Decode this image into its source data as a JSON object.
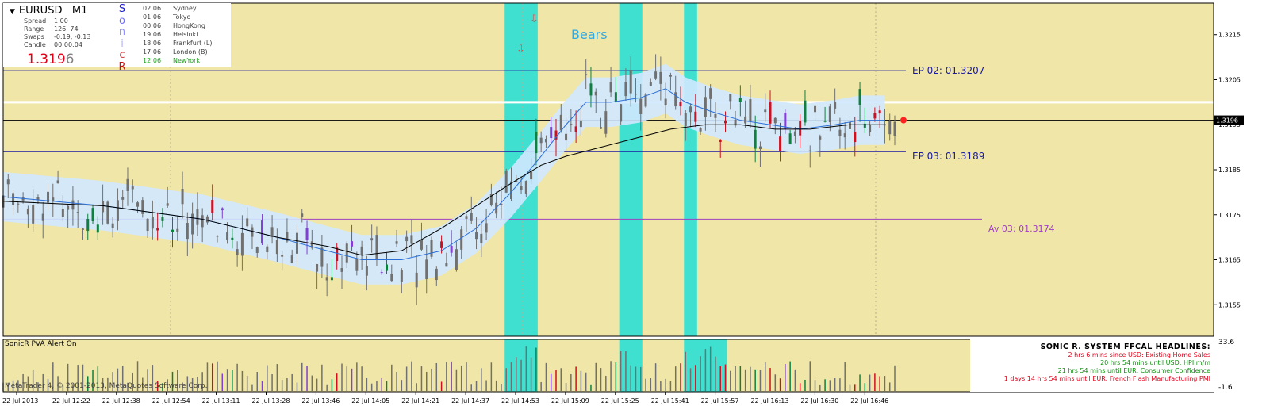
{
  "header": {
    "symbol": "EURUSD",
    "timeframe": "M1",
    "rows": [
      {
        "label": "Spread",
        "value": "1.00"
      },
      {
        "label": "Range",
        "value": "126, 74"
      },
      {
        "label": "Swaps",
        "value": "-0.19, -0.13"
      },
      {
        "label": "Candle",
        "value": "00:00:04"
      }
    ],
    "price_main": "1.319",
    "price_tail": "6",
    "sonic_letters": [
      "S",
      "o",
      "n",
      "i",
      "c",
      "R"
    ],
    "sonic_colors": [
      "#2020d0",
      "#7070ff",
      "#9090ff",
      "#b0b0ff",
      "#d04040",
      "#d01010"
    ],
    "sessions": [
      {
        "time": "02:06",
        "city": "Sydney",
        "color": "#404040"
      },
      {
        "time": "01:06",
        "city": "Tokyo",
        "color": "#404040"
      },
      {
        "time": "00:06",
        "city": "HongKong",
        "color": "#404040"
      },
      {
        "time": "19:06",
        "city": "Helsinki",
        "color": "#404040"
      },
      {
        "time": "18:06",
        "city": "Frankfurt  (L)",
        "color": "#404040"
      },
      {
        "time": "17:06",
        "city": "London  (B)",
        "color": "#404040"
      },
      {
        "time": "12:06",
        "city": "NewYork",
        "color": "#20a020"
      }
    ]
  },
  "chart_data": {
    "type": "candlestick",
    "symbol": "EURUSD",
    "timeframe": "M1",
    "ylim": [
      1.3148,
      1.3222
    ],
    "y_ticks": [
      "1.3215",
      "1.3205",
      "1.3195",
      "1.3185",
      "1.3175",
      "1.3165",
      "1.3155"
    ],
    "current_price": "1.3196",
    "x_tick_labels": [
      "22 Jul 2013",
      "22 Jul 12:22",
      "22 Jul 12:38",
      "22 Jul 12:54",
      "22 Jul 13:11",
      "22 Jul 13:28",
      "22 Jul 13:46",
      "22 Jul 14:05",
      "22 Jul 14:21",
      "22 Jul 14:37",
      "22 Jul 14:53",
      "22 Jul 15:09",
      "22 Jul 15:25",
      "22 Jul 15:41",
      "22 Jul 15:57",
      "22 Jul 16:13",
      "22 Jul 16:30",
      "22 Jul 16:46"
    ],
    "levels": [
      {
        "label": "EP 02:  01.3207",
        "value": 1.3207,
        "color": "#1a1aa0"
      },
      {
        "label": "EP 03:  01.3189",
        "value": 1.3189,
        "color": "#1a1aa0"
      },
      {
        "label": "Av 03:  01.3174",
        "value": 1.3174,
        "color": "#a040c0"
      },
      {
        "label": "",
        "value": 1.3196,
        "color": "#000000"
      },
      {
        "label": "",
        "value": 1.32,
        "color": "#ffffff"
      }
    ],
    "annotation": "Bears",
    "series": [
      {
        "name": "",
        "color": "#2a6ed6",
        "points": [
          [
            0,
            1.3179
          ],
          [
            20,
            1.3177
          ],
          [
            40,
            1.3174
          ],
          [
            55,
            1.317
          ],
          [
            65,
            1.3167
          ],
          [
            72,
            1.3165
          ],
          [
            80,
            1.3165
          ],
          [
            88,
            1.3167
          ],
          [
            95,
            1.3172
          ],
          [
            102,
            1.318
          ],
          [
            108,
            1.3188
          ],
          [
            113,
            1.3195
          ],
          [
            117,
            1.32
          ],
          [
            122,
            1.32
          ],
          [
            128,
            1.3201
          ],
          [
            133,
            1.3203
          ],
          [
            137,
            1.32
          ],
          [
            142,
            1.3198
          ],
          [
            148,
            1.3196
          ],
          [
            154,
            1.3195
          ],
          [
            160,
            1.3194
          ],
          [
            167,
            1.3195
          ],
          [
            172,
            1.3196
          ],
          [
            177,
            1.3196
          ]
        ]
      },
      {
        "name": "",
        "color": "#000000",
        "points": [
          [
            0,
            1.3178
          ],
          [
            20,
            1.3177
          ],
          [
            40,
            1.3174
          ],
          [
            55,
            1.317
          ],
          [
            65,
            1.3168
          ],
          [
            72,
            1.3166
          ],
          [
            80,
            1.3167
          ],
          [
            88,
            1.3172
          ],
          [
            95,
            1.3177
          ],
          [
            102,
            1.3182
          ],
          [
            108,
            1.3186
          ],
          [
            113,
            1.3188
          ],
          [
            120,
            1.319
          ],
          [
            127,
            1.3192
          ],
          [
            134,
            1.3194
          ],
          [
            141,
            1.3195
          ],
          [
            148,
            1.3195
          ],
          [
            155,
            1.3194
          ],
          [
            162,
            1.3194
          ],
          [
            170,
            1.3195
          ],
          [
            177,
            1.3195
          ]
        ]
      }
    ],
    "highlight_zones": [
      [
        101,
        107
      ],
      [
        124,
        128
      ],
      [
        137,
        139
      ]
    ],
    "volume_zones": [
      [
        101,
        107
      ],
      [
        124,
        128
      ],
      [
        137,
        145
      ]
    ],
    "volume_panel": {
      "title": "SonicR PVA   Alert On",
      "max_label": "33.6",
      "min_label": "-1.6"
    }
  },
  "copyright": "MetaTrader 4, © 2001-2013, MetaQuotes Software Corp.",
  "news": {
    "title": "SONIC R. SYSTEM  FFCAL HEADLINES:",
    "items": [
      {
        "text": "2 hrs 6 mins since USD: Existing Home Sales",
        "color": "#e0001a"
      },
      {
        "text": "20 hrs 54 mins until USD: HPI m/m",
        "color": "#109010"
      },
      {
        "text": "21 hrs 54 mins until EUR: Consumer Confidence",
        "color": "#109010"
      },
      {
        "text": "1 days 14 hrs 54 mins until EUR: French Flash Manufacturing PMI",
        "color": "#e0001a"
      }
    ]
  },
  "colors": {
    "background": "#f0e6a8",
    "highlight": "#40e0d0",
    "bull": "#108040",
    "bear": "#d01020",
    "neutral": "#707070",
    "climax": "#8040d0",
    "band": "#d0e8ff"
  }
}
